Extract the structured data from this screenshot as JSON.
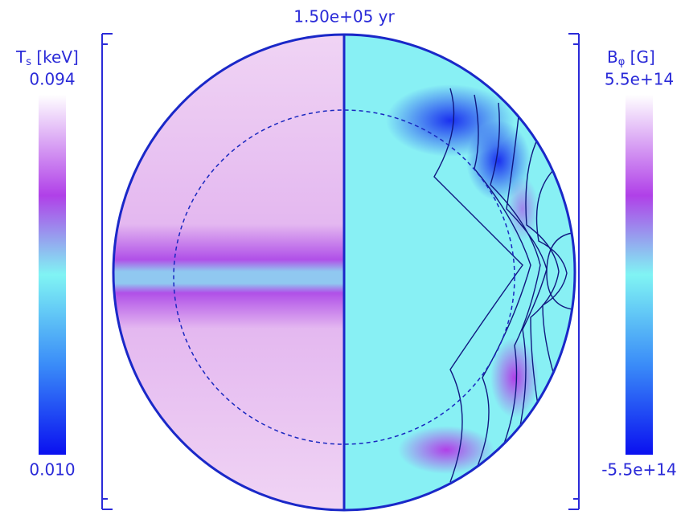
{
  "title": "1.50e+05 yr",
  "left_colorbar": {
    "symbol": "T",
    "subscript": "s",
    "unit": "[keV]",
    "max": "0.094",
    "min": "0.010"
  },
  "right_colorbar": {
    "symbol": "B",
    "subscript": "φ",
    "unit": "[G]",
    "max": "5.5e+14",
    "min": "-5.5e+14"
  }
}
